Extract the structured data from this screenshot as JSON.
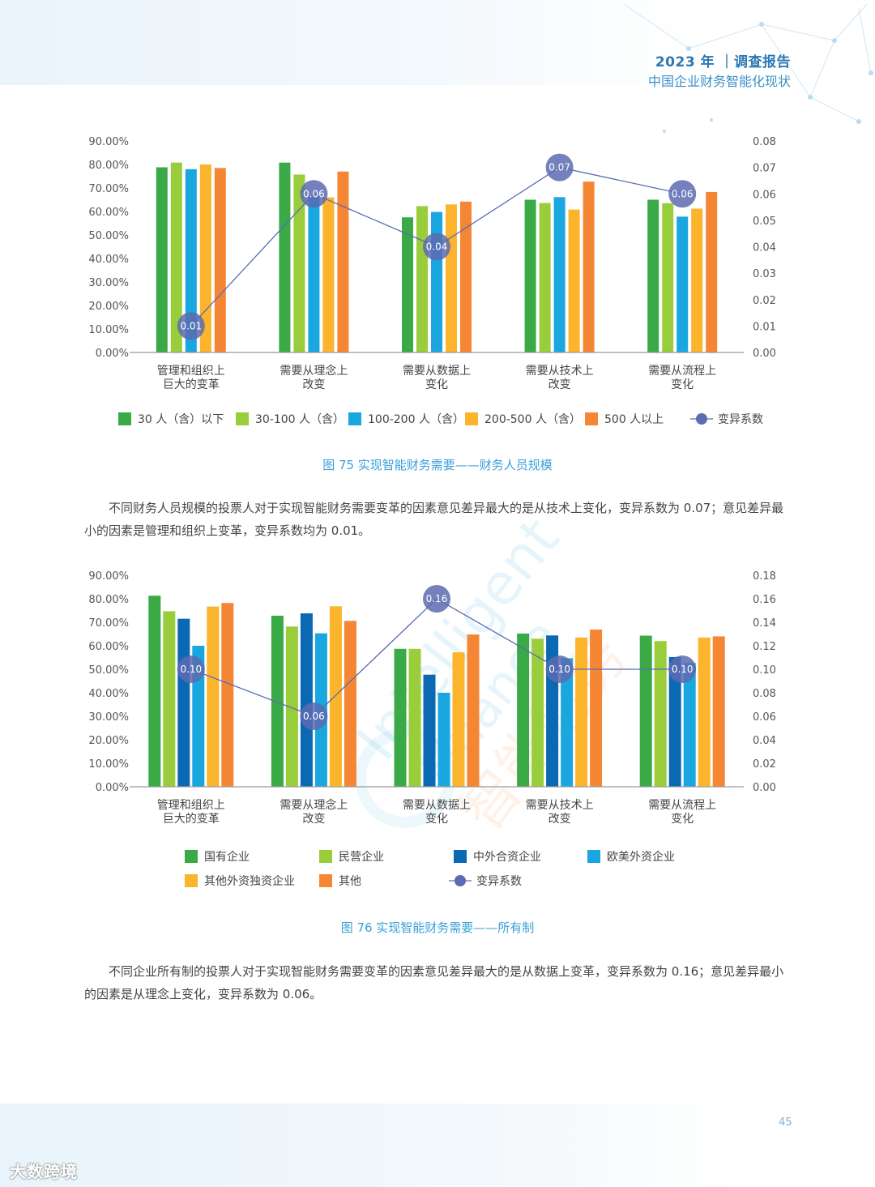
{
  "header": {
    "report_title": "2023 年 ｜调查报告",
    "subtitle": "中国企业财务智能化现状"
  },
  "watermark": {
    "text_en1": "Intelligent",
    "text_en2": "Finance",
    "text_cn": "智能财务"
  },
  "figure75": {
    "caption": "图 75 实现智能财务需要——财务人员规模",
    "paragraph": "不同财务人员规模的投票人对于实现智能财务需要变革的因素意见差异最大的是从技术上变化，变异系数为 0.07；意见差异最小的因素是管理和组织上变革，变异系数均为 0.01。"
  },
  "figure76": {
    "caption": "图 76  实现智能财务需要——所有制",
    "paragraph": "不同企业所有制的投票人对于实现智能财务需要变革的因素意见差异最大的是从数据上变革，变异系数为 0.16；意见差异最小的因素是从理念上变化，变异系数为 0.06。"
  },
  "page_number": "45",
  "logo_text": "大数跨境",
  "chart_data": [
    {
      "type": "bar",
      "categories": [
        [
          "管理和组织上",
          "巨大的变革"
        ],
        [
          "需要从理念上",
          "改变"
        ],
        [
          "需要从数据上",
          "变化"
        ],
        [
          "需要从技术上",
          "改变"
        ],
        [
          "需要从流程上",
          "变化"
        ]
      ],
      "series": [
        {
          "name": "30 人（含）以下",
          "color": "#3aaa47",
          "values": [
            78.8,
            80.8,
            57.5,
            65.0,
            65.0
          ]
        },
        {
          "name": "30-100 人（含）",
          "color": "#9acd3c",
          "values": [
            80.8,
            75.7,
            62.3,
            63.6,
            63.5
          ]
        },
        {
          "name": "100-200 人（含）",
          "color": "#1aa7df",
          "values": [
            78.0,
            66.5,
            59.8,
            66.1,
            57.8
          ]
        },
        {
          "name": "200-500 人（含）",
          "color": "#fbb42b",
          "values": [
            80.0,
            66.0,
            63.0,
            60.8,
            61.2
          ]
        },
        {
          "name": "500 人以上",
          "color": "#f58634",
          "values": [
            78.5,
            77.0,
            64.2,
            72.7,
            68.3
          ]
        }
      ],
      "line": {
        "name": "变异系数",
        "color": "#5c6bb2",
        "values": [
          0.01,
          0.06,
          0.04,
          0.07,
          0.06
        ],
        "labels": [
          "0.01",
          "0.06",
          "0.04",
          "0.07",
          "0.06"
        ]
      },
      "y_left": {
        "min": 0,
        "max": 90,
        "ticks": [
          "0.00%",
          "10.00%",
          "20.00%",
          "30.00%",
          "40.00%",
          "50.00%",
          "60.00%",
          "70.00%",
          "80.00%",
          "90.00%"
        ]
      },
      "y_right": {
        "min": 0,
        "max": 0.08,
        "ticks": [
          "0.00",
          "0.01",
          "0.02",
          "0.03",
          "0.04",
          "0.05",
          "0.06",
          "0.07",
          "0.08"
        ]
      },
      "legend_placement": "bottom",
      "legend_rows": [
        [
          0,
          1,
          2,
          3,
          4,
          "line"
        ]
      ]
    },
    {
      "type": "bar",
      "categories": [
        [
          "管理和组织上",
          "巨大的变革"
        ],
        [
          "需要从理念上",
          "改变"
        ],
        [
          "需要从数据上",
          "变化"
        ],
        [
          "需要从技术上",
          "改变"
        ],
        [
          "需要从流程上",
          "变化"
        ]
      ],
      "series": [
        {
          "name": "国有企业",
          "color": "#3aaa47",
          "values": [
            81.3,
            72.8,
            58.7,
            65.2,
            64.3
          ]
        },
        {
          "name": "民营企业",
          "color": "#9acd3c",
          "values": [
            74.7,
            68.2,
            58.7,
            63.0,
            62.0
          ]
        },
        {
          "name": "中外合资企业",
          "color": "#0b68b2",
          "values": [
            71.5,
            73.8,
            47.7,
            64.4,
            55.2
          ]
        },
        {
          "name": "欧美外资企业",
          "color": "#1aa7df",
          "values": [
            60.0,
            65.3,
            40.0,
            54.7,
            52.7
          ]
        },
        {
          "name": "其他外资独资企业",
          "color": "#fbb42b",
          "values": [
            76.7,
            76.8,
            57.2,
            63.5,
            63.5
          ]
        },
        {
          "name": "其他",
          "color": "#f58634",
          "values": [
            78.2,
            70.6,
            64.8,
            66.9,
            64.0
          ]
        }
      ],
      "line": {
        "name": "变异系数",
        "color": "#5c6bb2",
        "values": [
          0.1,
          0.06,
          0.16,
          0.1,
          0.1
        ],
        "labels": [
          "0.10",
          "0.06",
          "0.16",
          "0.10",
          "0.10"
        ]
      },
      "y_left": {
        "min": 0,
        "max": 90,
        "ticks": [
          "0.00%",
          "10.00%",
          "20.00%",
          "30.00%",
          "40.00%",
          "50.00%",
          "60.00%",
          "70.00%",
          "80.00%",
          "90.00%"
        ]
      },
      "y_right": {
        "min": 0,
        "max": 0.18,
        "ticks": [
          "0.00",
          "0.02",
          "0.04",
          "0.06",
          "0.08",
          "0.10",
          "0.12",
          "0.14",
          "0.16",
          "0.18"
        ]
      },
      "legend_placement": "bottom",
      "legend_rows": [
        [
          0,
          1,
          2,
          3
        ],
        [
          4,
          5,
          "line"
        ]
      ]
    }
  ]
}
